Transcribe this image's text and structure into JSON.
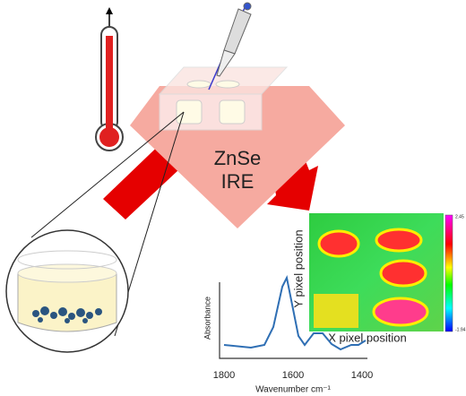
{
  "prism": {
    "line1": "ZnSe",
    "line2": "IRE"
  },
  "spectrum": {
    "y_label": "Absorbance",
    "x_label": "Wavenumber cm⁻¹",
    "x_ticks": [
      "1800",
      "1600",
      "1400"
    ]
  },
  "map": {
    "y_label": "Y pixel position",
    "x_label": "X pixel position",
    "scale_top": "2.45",
    "scale_bottom": "-1.94"
  }
}
